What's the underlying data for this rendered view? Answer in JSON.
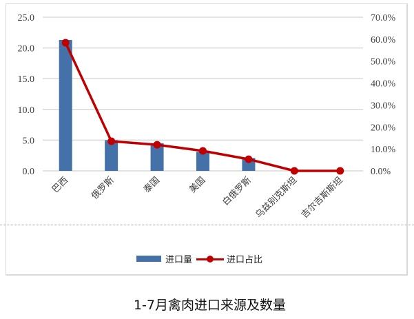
{
  "chart_data": {
    "type": "bar+line",
    "title": "1-7月禽肉进口来源及数量",
    "categories": [
      "巴西",
      "俄罗斯",
      "泰国",
      "美国",
      "白俄罗斯",
      "乌兹别克斯坦",
      "吉尔吉斯斯坦"
    ],
    "series": [
      {
        "name": "进口量",
        "type": "bar",
        "axis": "left",
        "color": "#4472a8",
        "values": [
          21.3,
          5.0,
          4.5,
          3.1,
          2.1,
          0.0,
          0.0
        ]
      },
      {
        "name": "进口占比",
        "type": "line",
        "axis": "right",
        "color": "#c00000",
        "values": [
          58.4,
          13.5,
          11.9,
          9.1,
          5.3,
          0.0,
          0.0
        ]
      }
    ],
    "left_axis": {
      "ylim": [
        0,
        25
      ],
      "ticks": [
        "0.0",
        "5.0",
        "10.0",
        "15.0",
        "20.0",
        "25.0"
      ]
    },
    "right_axis": {
      "ylim": [
        0,
        70
      ],
      "ticks": [
        "0.0%",
        "10.0%",
        "20.0%",
        "30.0%",
        "40.0%",
        "50.0%",
        "60.0%",
        "70.0%"
      ]
    },
    "xlabel": "",
    "ylabel": "",
    "grid": true,
    "legend_position": "bottom"
  },
  "legend": {
    "bar_label": "进口量",
    "line_label": "进口占比"
  },
  "caption": "1-7月禽肉进口来源及数量"
}
